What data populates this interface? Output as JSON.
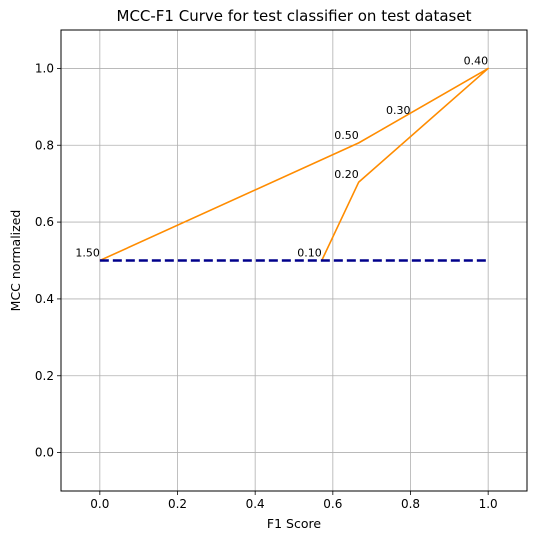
{
  "chart_data": {
    "type": "line",
    "title": "MCC-F1 Curve for test classifier on test dataset",
    "xlabel": "F1 Score",
    "ylabel": "MCC normalized",
    "xlim": [
      -0.1,
      1.1
    ],
    "ylim": [
      -0.1,
      1.1
    ],
    "x_ticks": [
      "0.0",
      "0.2",
      "0.4",
      "0.6",
      "0.8",
      "1.0"
    ],
    "y_ticks": [
      "0.0",
      "0.2",
      "0.4",
      "0.6",
      "0.8",
      "1.0"
    ],
    "grid": true,
    "legend": false,
    "series": [
      {
        "x": [
          0.0,
          0.6667,
          1.0,
          0.6667,
          0.5714
        ],
        "y": [
          0.5,
          0.8062,
          1.0,
          0.7041,
          0.5
        ],
        "color": "#ff8c00",
        "style": "solid"
      },
      {
        "x": [
          0.0,
          1.0
        ],
        "y": [
          0.5,
          0.5
        ],
        "color": "#00008b",
        "style": "dashed"
      }
    ],
    "annotations": [
      {
        "text": "1.50",
        "x": 0.0,
        "y": 0.5
      },
      {
        "text": "0.50",
        "x": 0.6667,
        "y": 0.8062
      },
      {
        "text": "0.40",
        "x": 1.0,
        "y": 1.0
      },
      {
        "text": "0.30",
        "x": 0.8,
        "y": 0.8704
      },
      {
        "text": "0.20",
        "x": 0.6667,
        "y": 0.7041
      },
      {
        "text": "0.10",
        "x": 0.5714,
        "y": 0.5
      }
    ]
  }
}
